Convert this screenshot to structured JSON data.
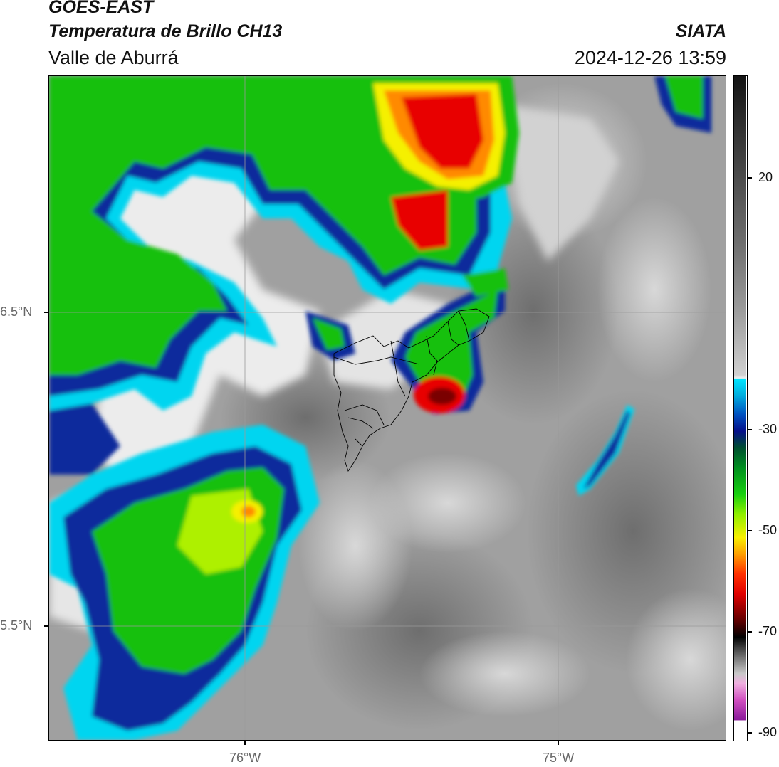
{
  "header": {
    "title_line1": "GOES-EAST",
    "title_line2": "Temperatura de Brillo CH13",
    "subtitle": "Valle de Aburrá",
    "organization": "SIATA",
    "datetime": "2024-12-26 13:59"
  },
  "map": {
    "latitude_labels": [
      "6.5°N",
      "5.5°N"
    ],
    "longitude_labels": [
      "76°W",
      "75°W"
    ],
    "basemap": "Valle de Aburrá municipal boundaries"
  },
  "colorbar": {
    "tick_labels": [
      "20",
      "-30",
      "-50",
      "-70",
      "-90"
    ],
    "tick_values": [
      20,
      -30,
      -50,
      -70,
      -90
    ],
    "range": [
      -92,
      36
    ],
    "colors": {
      "warm": "#7a7a7a",
      "mid": "#f2f2f2",
      "cyan": "#00d5f0",
      "blue": "#0a2a9c",
      "green": "#18c010",
      "yellow": "#f5f000",
      "orange": "#ff8a00",
      "red": "#e80000",
      "black": "#000000",
      "pink": "#e060c8",
      "purple": "#7a1a8a"
    }
  }
}
